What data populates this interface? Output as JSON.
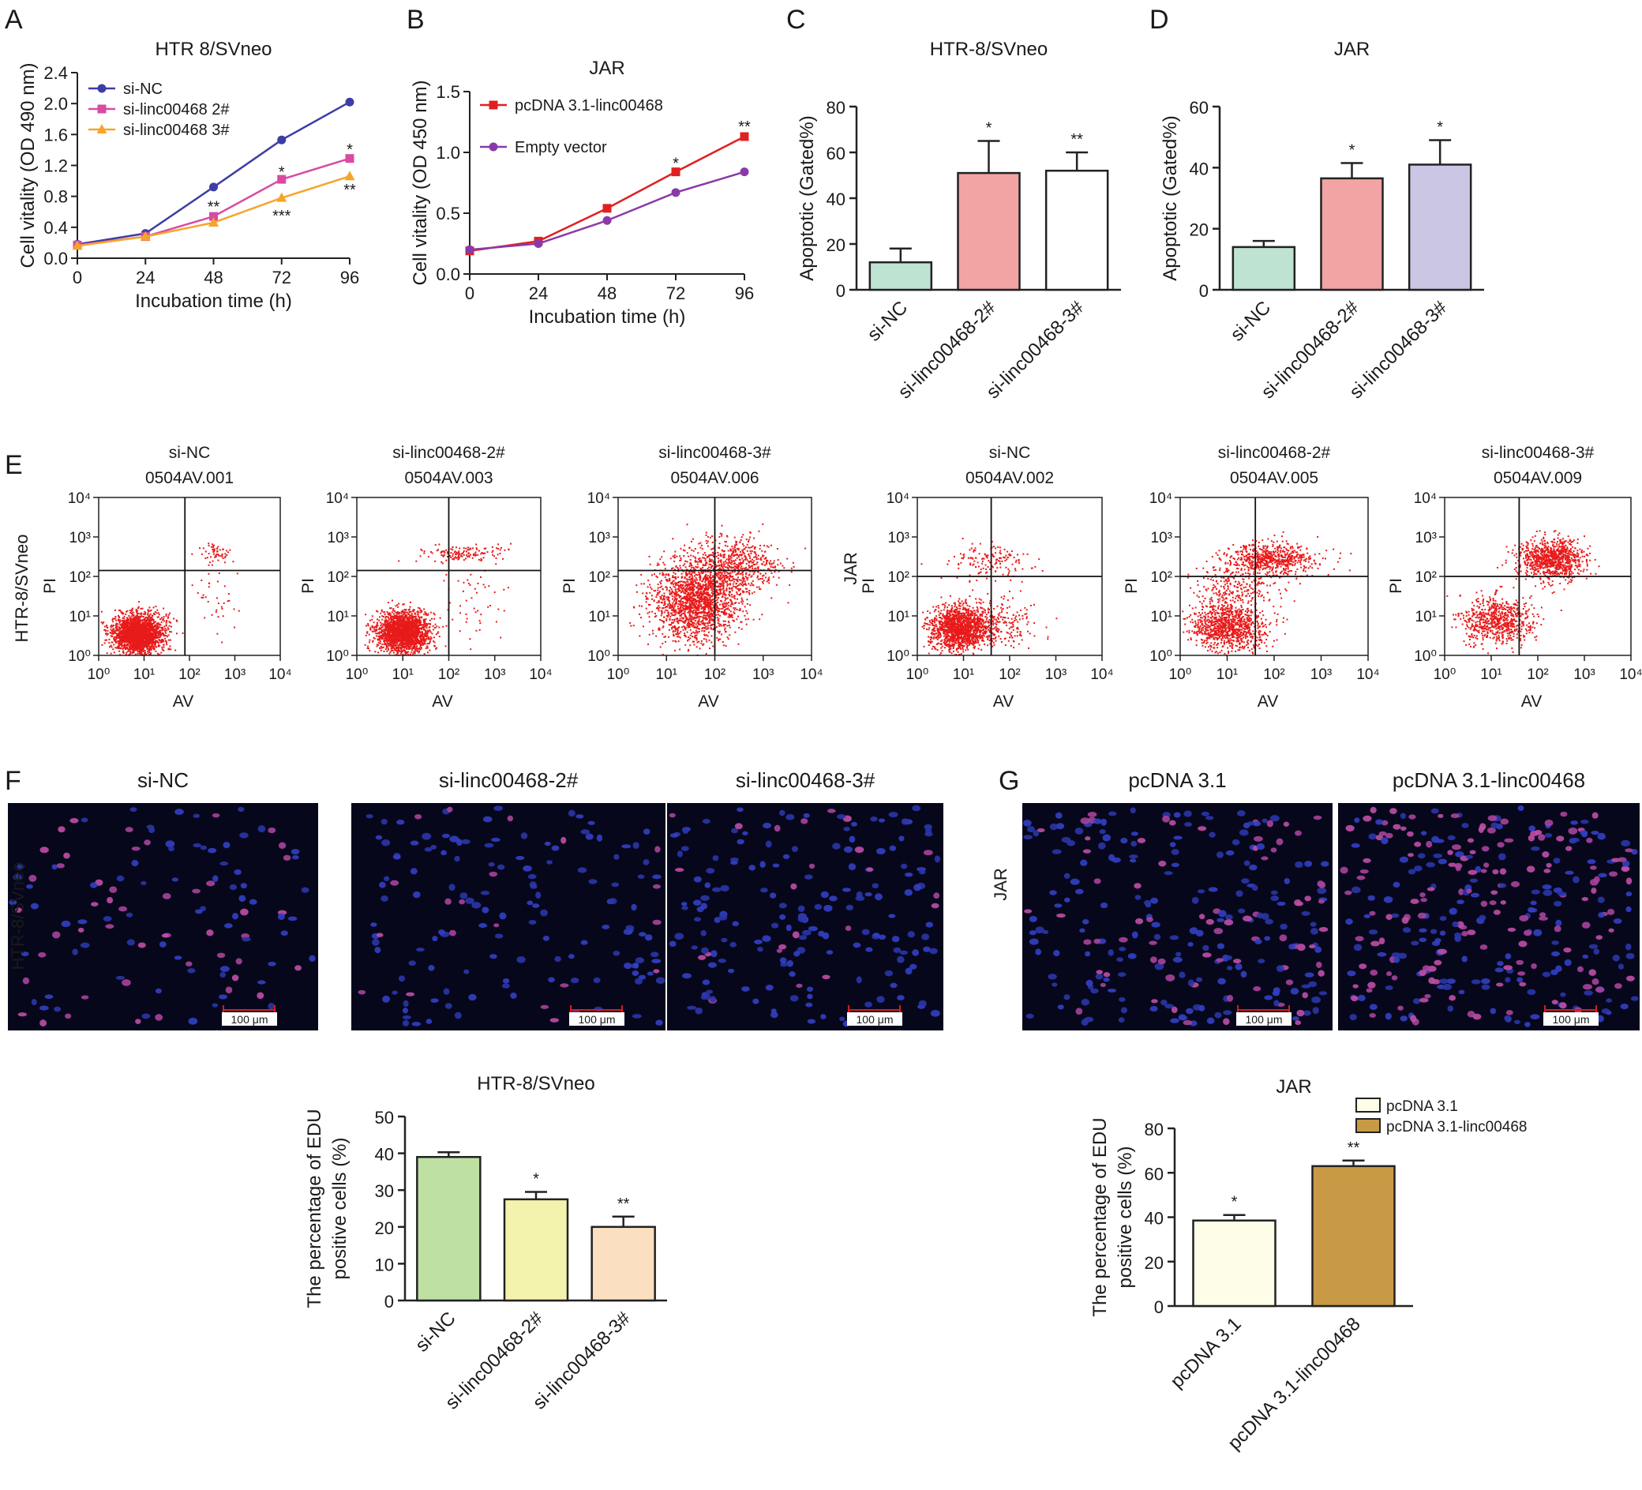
{
  "chart_data": [
    {
      "panel": "A",
      "type": "line",
      "title": "HTR 8/SVneo",
      "xlabel": "Incubation time (h)",
      "ylabel": "Cell vitality (OD 490 nm)",
      "x": [
        0,
        24,
        48,
        72,
        96
      ],
      "xticks": [
        "0",
        "24",
        "48",
        "72",
        "96"
      ],
      "ylim": [
        0,
        2.4
      ],
      "yticks": [
        "0.0",
        "0.4",
        "0.8",
        "1.2",
        "1.6",
        "2.0",
        "2.4"
      ],
      "legend": "top-left",
      "series": [
        {
          "name": "si-NC",
          "color": "#3d3da6",
          "marker": "circle",
          "values": [
            0.18,
            0.32,
            0.92,
            1.53,
            2.02
          ]
        },
        {
          "name": "si-linc00468 2#",
          "color": "#d94aa3",
          "marker": "square",
          "values": [
            0.17,
            0.28,
            0.54,
            1.02,
            1.29
          ]
        },
        {
          "name": "si-linc00468 3#",
          "color": "#f5a52a",
          "marker": "triangle",
          "values": [
            0.16,
            0.28,
            0.46,
            0.78,
            1.06
          ]
        }
      ],
      "annotations": [
        {
          "text": "**",
          "x": 48,
          "y": 0.68
        },
        {
          "text": "*",
          "x": 72,
          "y": 1.13
        },
        {
          "text": "***",
          "x": 72,
          "y": 0.56
        },
        {
          "text": "*",
          "x": 96,
          "y": 1.42
        },
        {
          "text": "**",
          "x": 96,
          "y": 0.9
        }
      ]
    },
    {
      "panel": "B",
      "type": "line",
      "title": "JAR",
      "xlabel": "Incubation time (h)",
      "ylabel": "Cell vitality (OD 450 nm)",
      "x": [
        0,
        24,
        48,
        72,
        96
      ],
      "xticks": [
        "0",
        "24",
        "48",
        "72",
        "96"
      ],
      "ylim": [
        0,
        1.5
      ],
      "yticks": [
        "0.0",
        "0.5",
        "1.0",
        "1.5"
      ],
      "legend": "top-left",
      "series": [
        {
          "name": "pcDNA 3.1-linc00468",
          "color": "#e02020",
          "marker": "square",
          "values": [
            0.19,
            0.27,
            0.54,
            0.84,
            1.13
          ]
        },
        {
          "name": "Empty vector",
          "color": "#8a3aa8",
          "marker": "circle",
          "values": [
            0.2,
            0.25,
            0.44,
            0.67,
            0.84
          ]
        }
      ],
      "annotations": [
        {
          "text": "*",
          "x": 72,
          "y": 0.92
        },
        {
          "text": "**",
          "x": 96,
          "y": 1.22
        }
      ]
    },
    {
      "panel": "C",
      "type": "bar",
      "title": "HTR-8/SVneo",
      "ylabel": "Apoptotic (Gated%)",
      "categories": [
        "si-NC",
        "si-linc00468-2#",
        "si-linc00468-3#"
      ],
      "values": [
        12,
        51,
        52
      ],
      "errors": [
        6,
        14,
        8
      ],
      "significance": [
        "",
        "*",
        "**"
      ],
      "colors": [
        "#bfe3d2",
        "#f2a3a3",
        "#ffffff"
      ],
      "ylim": [
        0,
        80
      ],
      "yticks": [
        "0",
        "20",
        "40",
        "60",
        "80"
      ]
    },
    {
      "panel": "D",
      "type": "bar",
      "title": "JAR",
      "ylabel": "Apoptotic (Gated%)",
      "categories": [
        "si-NC",
        "si-linc00468-2#",
        "si-linc00468-3#"
      ],
      "values": [
        14,
        36.5,
        41
      ],
      "errors": [
        2,
        5,
        8
      ],
      "significance": [
        "",
        "*",
        "*"
      ],
      "colors": [
        "#bfe3d2",
        "#f2a3a3",
        "#ccc6e5"
      ],
      "ylim": [
        0,
        60
      ],
      "yticks": [
        "0",
        "20",
        "40",
        "60"
      ]
    },
    {
      "panel": "F-bar",
      "type": "bar",
      "title": "HTR-8/SVneo",
      "ylabel": "The percentage of EDU positive cells (%)",
      "categories": [
        "si-NC",
        "si-linc00468-2#",
        "si-linc00468-3#"
      ],
      "values": [
        39,
        27.5,
        20
      ],
      "errors": [
        1.3,
        2,
        2.8
      ],
      "significance": [
        "",
        "*",
        "**"
      ],
      "colors": [
        "#bfe0a3",
        "#f4f3ad",
        "#fbdfc1"
      ],
      "ylim": [
        0,
        50
      ],
      "yticks": [
        "0",
        "10",
        "20",
        "30",
        "40",
        "50"
      ]
    },
    {
      "panel": "G-bar",
      "type": "bar",
      "title": "JAR",
      "ylabel": "The percentage of EDU positive cells (%)",
      "categories": [
        "pcDNA 3.1",
        "pcDNA 3.1-linc00468"
      ],
      "values": [
        38.5,
        63
      ],
      "errors": [
        2.5,
        2.5
      ],
      "significance": [
        "*",
        "**"
      ],
      "colors": [
        "#fdfde8",
        "#c99a45"
      ],
      "legend": "top",
      "ylim": [
        0,
        80
      ],
      "yticks": [
        "0",
        "20",
        "40",
        "60",
        "80"
      ]
    }
  ],
  "labels": {
    "panel_A": "A",
    "panel_B": "B",
    "panel_C": "C",
    "panel_D": "D",
    "panel_E": "E",
    "panel_F": "F",
    "panel_G": "G"
  },
  "flow": {
    "xlabel": "AV",
    "ylabel": "PI",
    "tick_labels": [
      "10⁰",
      "10¹",
      "10²",
      "10³",
      "10⁴"
    ],
    "row_labels": [
      "HTR-8/SVneo",
      "JAR"
    ],
    "color": "#e81a1a",
    "plots": [
      {
        "group": "si-NC",
        "sample": "0504AV.001",
        "row": "HTR-8/SVneo",
        "gate": [
          1.9,
          2.15
        ]
      },
      {
        "group": "si-linc00468-2#",
        "sample": "0504AV.003",
        "row": "HTR-8/SVneo",
        "gate": [
          2.0,
          2.15
        ]
      },
      {
        "group": "si-linc00468-3#",
        "sample": "0504AV.006",
        "row": "HTR-8/SVneo",
        "gate": [
          2.0,
          2.15
        ]
      },
      {
        "group": "si-NC",
        "sample": "0504AV.002",
        "row": "JAR",
        "gate": [
          1.6,
          2.0
        ]
      },
      {
        "group": "si-linc00468-2#",
        "sample": "0504AV.005",
        "row": "JAR",
        "gate": [
          1.6,
          2.0
        ]
      },
      {
        "group": "si-linc00468-3#",
        "sample": "0504AV.009",
        "row": "JAR",
        "gate": [
          1.6,
          2.0
        ]
      }
    ]
  },
  "microscopy": {
    "scale_bar": "100 μm",
    "F_row_label": "HTR-8/SVneo",
    "G_row_label": "JAR",
    "F_images": [
      {
        "title": "si-NC",
        "density": 120,
        "pink": 0.45
      },
      {
        "title": "si-linc00468-2#",
        "density": 150,
        "pink": 0.15
      },
      {
        "title": "si-linc00468-3#",
        "density": 190,
        "pink": 0.12
      }
    ],
    "G_images": [
      {
        "title": "pcDNA 3.1",
        "density": 260,
        "pink": 0.25
      },
      {
        "title": "pcDNA 3.1-linc00468",
        "density": 320,
        "pink": 0.5
      }
    ]
  }
}
